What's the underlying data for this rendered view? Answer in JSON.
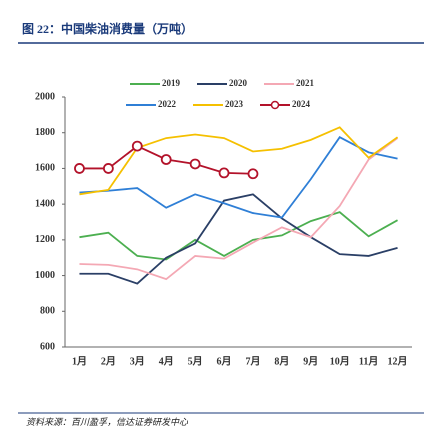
{
  "chart_data": {
    "type": "line",
    "title": "图 22：中国柴油消费量（万吨）",
    "source": "资料来源：百川盈孚，信达证券研发中心",
    "categories": [
      "1月",
      "2月",
      "3月",
      "4月",
      "5月",
      "6月",
      "7月",
      "8月",
      "9月",
      "10月",
      "11月",
      "12月"
    ],
    "series": [
      {
        "name": "2019",
        "color": "#4caf50",
        "values": [
          1215,
          1240,
          1110,
          1090,
          1200,
          1110,
          1200,
          1225,
          1305,
          1355,
          1220,
          1310
        ]
      },
      {
        "name": "2020",
        "color": "#2a3f66",
        "values": [
          1010,
          1010,
          955,
          1100,
          1180,
          1420,
          1455,
          1320,
          1215,
          1120,
          1110,
          1155
        ]
      },
      {
        "name": "2021",
        "color": "#f4a8b4",
        "values": [
          1065,
          1060,
          1035,
          980,
          1110,
          1095,
          1185,
          1270,
          1215,
          1390,
          1650,
          1770
        ]
      },
      {
        "name": "2022",
        "color": "#2f7fd6",
        "values": [
          1465,
          1475,
          1490,
          1380,
          1455,
          1405,
          1350,
          1325,
          1540,
          1775,
          1690,
          1655
        ]
      },
      {
        "name": "2023",
        "color": "#f5c000",
        "values": [
          1455,
          1480,
          1715,
          1770,
          1790,
          1770,
          1695,
          1710,
          1760,
          1830,
          1660,
          1775
        ]
      },
      {
        "name": "2024",
        "color": "#b3122a",
        "marker": true,
        "values": [
          1600,
          1600,
          1725,
          1650,
          1625,
          1575,
          1570,
          null,
          null,
          null,
          null,
          null
        ]
      }
    ],
    "ylim": [
      600,
      2000
    ],
    "yticks": [
      600,
      800,
      1000,
      1200,
      1400,
      1600,
      1800,
      2000
    ]
  }
}
